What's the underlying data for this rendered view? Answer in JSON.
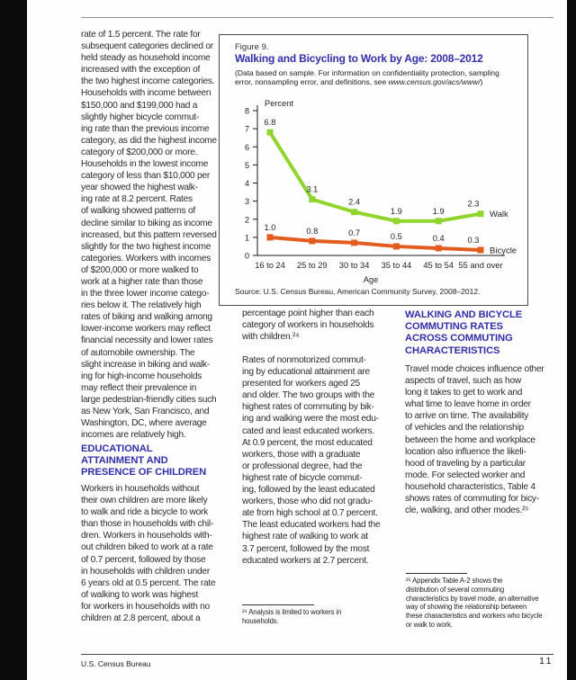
{
  "page": {
    "footer": {
      "left": "U.S. Census Bureau",
      "page_number": "11"
    }
  },
  "left_column": {
    "para1_lines": [
      "rate of 1.5 percent. The rate for",
      "subsequent categories declined or",
      "held steady as household income",
      "increased with the exception of",
      "the two highest income categories.",
      "Households with income between",
      "$150,000 and $199,000 had a",
      "slightly higher bicycle commut-",
      "ing rate than the previous income",
      "category, as did the highest income",
      "category of $200,000 or more.",
      "Households in the lowest income",
      "category of less than $10,000 per",
      "year showed the highest walk-",
      "ing rate at 8.2 percent. Rates",
      "of walking showed patterns of",
      "decline similar to biking as income",
      "increased, but this pattern reversed",
      "slightly for the two highest income",
      "categories. Workers with incomes",
      "of $200,000 or more walked to",
      "work at a higher rate than those",
      "in the three lower income catego-",
      "ries below it. The relatively high",
      "rates of biking and walking among",
      "lower-income workers may reflect",
      "financial necessity and lower rates",
      "of automobile ownership. The",
      "slight increase in biking and walk-",
      "ing for high-income households",
      "may reflect their prevalence in",
      "large pedestrian-friendly cities such",
      "as New York, San Francisco, and",
      "Washington, DC, where average",
      "incomes are relatively high."
    ],
    "heading_lines": [
      "EDUCATIONAL",
      "ATTAINMENT AND",
      "PRESENCE OF CHILDREN"
    ],
    "para2_lines": [
      "Workers in households without",
      "their own children are more likely",
      "to walk and ride a bicycle to work",
      "than those in households with chil-",
      "dren. Workers in households with-",
      "out children biked to work at a rate",
      "of 0.7 percent, followed by those",
      "in households with children under",
      "6 years old at 0.5 percent. The rate",
      "of walking to work was highest",
      "for workers in households with no",
      "children at 2.8 percent, about a"
    ]
  },
  "middle_column": {
    "para1_lines": [
      "percentage point higher than each",
      "category of workers in households",
      "with children.²⁴"
    ],
    "para2_lines": [
      "Rates of nonmotorized commut-",
      "ing by educational attainment are",
      "presented for workers aged 25",
      "and older. The two groups with the",
      "highest rates of commuting by bik-",
      "ing and walking were the most edu-",
      "cated and least educated workers.",
      "At 0.9 percent, the most educated",
      "workers, those with a graduate",
      "or professional degree, had the",
      "highest rate of bicycle commut-",
      "ing, followed by the least educated",
      "workers, those who did not gradu-",
      "ate from high school at 0.7 percent.",
      "The least educated workers had the",
      "highest rate of walking to work at",
      "3.7 percent, followed by the most",
      "educated workers at 2.7 percent."
    ],
    "footnote_lines": [
      "²⁴ Analysis is limited to workers in",
      "households."
    ]
  },
  "right_column": {
    "heading_lines": [
      "WALKING AND BICYCLE",
      "COMMUTING RATES",
      "ACROSS COMMUTING",
      "CHARACTERISTICS"
    ],
    "para1_lines": [
      "Travel mode choices influence other",
      "aspects of travel, such as how",
      "long it takes to get to work and",
      "what time to leave home in order",
      "to arrive on time. The availability",
      "of vehicles and the relationship",
      "between the home and workplace",
      "location also influence the likeli-",
      "hood of traveling by a particular",
      "mode. For selected worker and",
      "household characteristics, Table 4",
      "shows rates of commuting for bicy-",
      "cle, walking, and other modes.²⁵"
    ],
    "footnote_lines": [
      "²⁵ Appendix Table A-2 shows the",
      "distribution of several commuting",
      "characteristics by travel mode, an alternative",
      "way of showing the relationship between",
      "these characteristics and workers who bicycle",
      "or walk to work."
    ]
  },
  "figure": {
    "label": "Figure 9.",
    "title": "Walking and Bicycling to Work by Age: 2008–2012",
    "subtitle_prefix": "(Data based on sample. For information on confidentiality protection, sampling error, nonsampling error, and definitions, see ",
    "subtitle_url": "www.census.gov/acs/www/",
    "subtitle_suffix": ")",
    "source": "Source: U.S. Census Bureau, American Community Survey, 2008–2012.",
    "chart_data": {
      "type": "line",
      "title": "Walking and Bicycling to Work by Age: 2008–2012",
      "categories": [
        "16 to 24",
        "25 to 29",
        "30 to 34",
        "35 to 44",
        "45 to 54",
        "55 and over"
      ],
      "series": [
        {
          "name": "Walk",
          "values": [
            6.8,
            3.1,
            2.4,
            1.9,
            1.9,
            2.3
          ],
          "color": "#90D42E"
        },
        {
          "name": "Bicycle",
          "values": [
            1.0,
            0.8,
            0.7,
            0.5,
            0.4,
            0.3
          ],
          "color": "#E35C1F"
        }
      ],
      "ylabel": "Percent",
      "xlabel": "Age",
      "ylim": [
        0,
        8
      ],
      "yticks": [
        0,
        1,
        2,
        3,
        4,
        5,
        6,
        7,
        8
      ],
      "grid": false,
      "marker": "square",
      "data_labels": true,
      "legend_position": "line-end"
    }
  },
  "colors": {
    "heading_blue": "#332FA8",
    "walk_green": "#90D42E",
    "bicycle_orange": "#E35C1F",
    "page_background": "#FEFEFE",
    "scan_edge": "#0B0B0B"
  }
}
